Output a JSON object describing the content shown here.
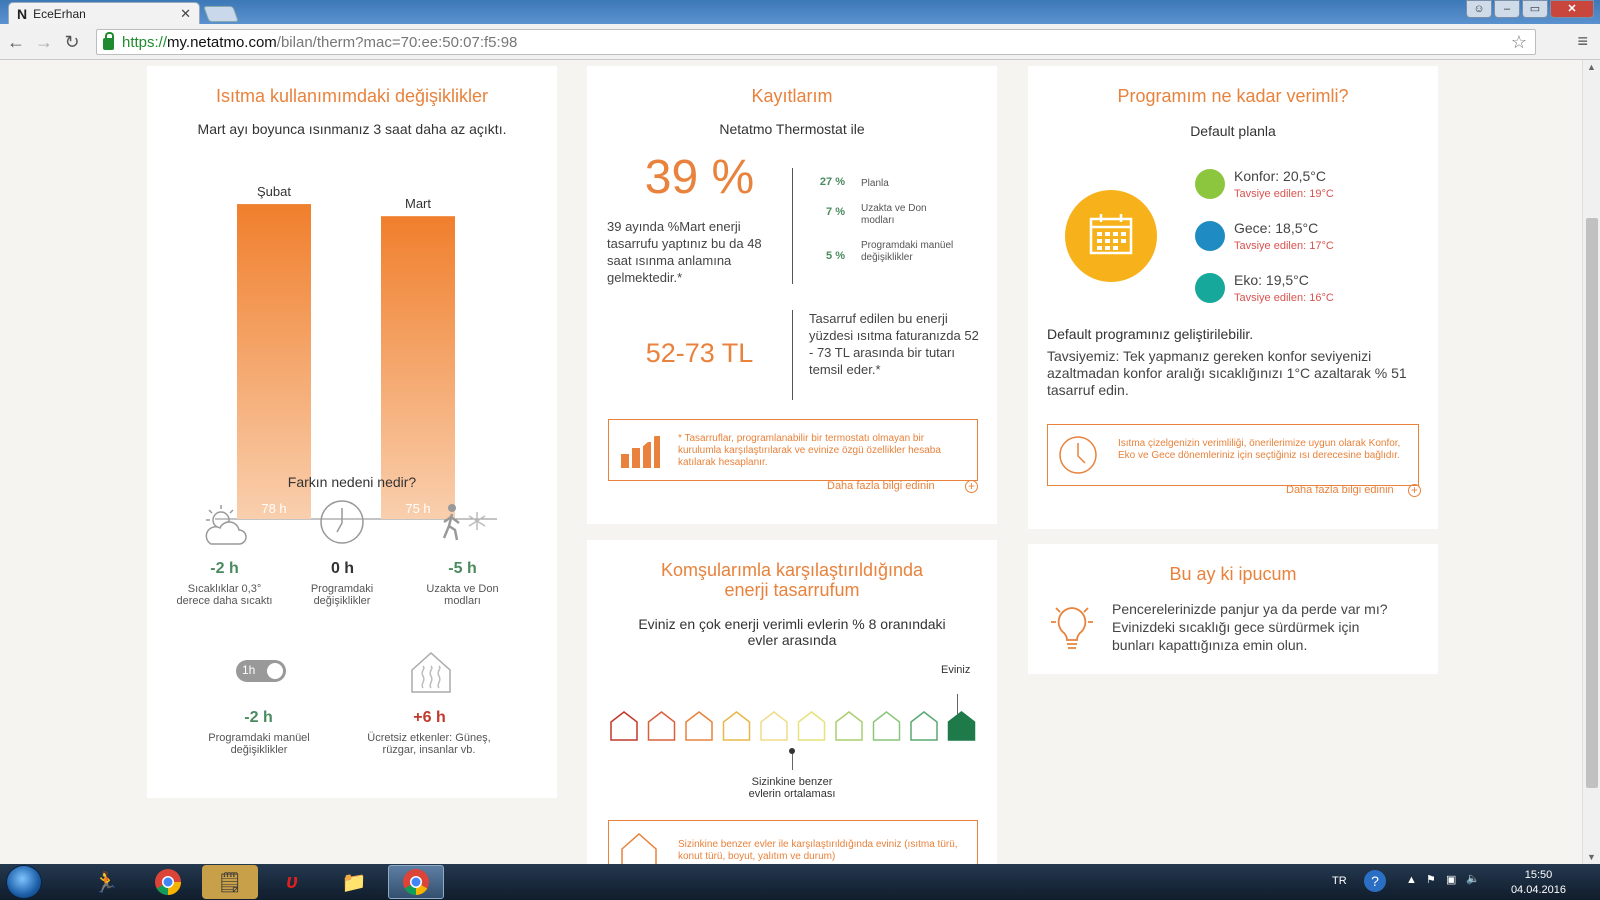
{
  "browser": {
    "tab_title": "EceErhan",
    "tab_logo": "N",
    "url_scheme": "https://",
    "url_host": "my.netatmo.com",
    "url_path": "/bilan/therm?mac=70:ee:50:07:f5:98"
  },
  "usage": {
    "title": "Isıtma kullanımımdaki değişiklikler",
    "subtitle": "Mart ayı boyunca ısınmanız 3 saat daha az açıktı.",
    "chart_data": {
      "type": "bar",
      "categories": [
        "Şubat",
        "Mart"
      ],
      "values": [
        78,
        75
      ],
      "value_labels": [
        "78 h",
        "75 h"
      ],
      "color": "#f07f2c"
    },
    "reason_title": "Farkın nedeni nedir?",
    "reasons": [
      {
        "value": "-2 h",
        "label": "Sıcaklıklar 0,3° derece daha sıcaktı",
        "icon": "weather-icon"
      },
      {
        "value": "0 h",
        "label": "Programdaki değişiklikler",
        "icon": "clock-icon"
      },
      {
        "value": "-5 h",
        "label": "Uzakta ve Don modları",
        "icon": "away-frost-icon"
      },
      {
        "value": "-2 h",
        "label": "Programdaki manüel değişiklikler",
        "icon": "manual-toggle-icon"
      },
      {
        "value": "+6 h",
        "label": "Ücretsiz etkenler: Güneş, rüzgar, insanlar vb.",
        "icon": "house-heat-icon"
      }
    ],
    "toggle_text": "1h"
  },
  "savings": {
    "title": "Kayıtlarım",
    "subtitle": "Netatmo Thermostat ile",
    "percent": "39 %",
    "percent_text": "39 ayında %Mart enerji tasarrufu yaptınız bu da 48 saat ısınma anlamına gelmektedir.*",
    "breakdown": [
      {
        "value": "27 %",
        "label": "Planla"
      },
      {
        "value": "7 %",
        "label": "Uzakta ve Don modları"
      },
      {
        "value": "5 %",
        "label": "Programdaki manüel değişiklikler"
      }
    ],
    "money": "52-73 TL",
    "money_text": "Tasarruf edilen bu enerji yüzdesi ısıtma faturanızda 52 - 73 TL arasında bir tutarı temsil eder.*",
    "note": "* Tasarruflar, programlanabilir bir termostatı olmayan bir kurulumla karşılaştırılarak ve evinize özgü özellikler hesaba katılarak hesaplanır.",
    "more_link": "Daha fazla bilgi edinin"
  },
  "efficiency": {
    "title": "Programım ne kadar verimli?",
    "subtitle": "Default planla",
    "modes": [
      {
        "label": "Konfor: 20,5°C",
        "rec": "Tavsiye edilen: 19°C",
        "color": "#8cc63f"
      },
      {
        "label": "Gece: 18,5°C",
        "rec": "Tavsiye edilen: 17°C",
        "color": "#1e8bc3"
      },
      {
        "label": "Eko: 19,5°C",
        "rec": "Tavsiye edilen: 16°C",
        "color": "#16a89a"
      }
    ],
    "improve_title": "Default programınız geliştirilebilir.",
    "improve_text": "Tavsiyemiz: Tek yapmanız gereken konfor seviyenizi azaltmadan konfor aralığı sıcaklığınızı 1°C azaltarak % 51 tasarruf edin.",
    "note": "Isıtma çizelgenizin verimliliği, önerilerimize uygun olarak Konfor, Eko ve Gece dönemleriniz için seçtiğiniz ısı derecesine bağlıdır.",
    "more_link": "Daha fazla bilgi edinin"
  },
  "neighbors": {
    "title_line1": "Komşularımla karşılaştırıldığında",
    "title_line2": "enerji tasarrufum",
    "subtitle_line1": "Eviniz en çok enerji verimli evlerin % 8 oranındaki",
    "subtitle_line2": "evler arasında",
    "your_home": "Eviniz",
    "average_line1": "Sizinkine benzer",
    "average_line2": "evlerin ortalaması",
    "house_colors": [
      "#c0392b",
      "#d9603b",
      "#e8823c",
      "#e6b84a",
      "#f0dc8a",
      "#e7e27a",
      "#a9cf6e",
      "#8cc67a",
      "#5aa872",
      "#1f7a4a"
    ],
    "note": "Sizinkine benzer evler ile karşılaştırıldığında eviniz (ısıtma türü, konut türü, boyut, yalıtım ve durum)"
  },
  "tip": {
    "title": "Bu ay ki ipucum",
    "text": "Pencerelerinizde panjur ya da perde var mı? Evinizdeki sıcaklığı gece sürdürmek için bunları kapattığınıza emin olun."
  },
  "taskbar": {
    "language": "TR",
    "time": "15:50",
    "date": "04.04.2016"
  }
}
